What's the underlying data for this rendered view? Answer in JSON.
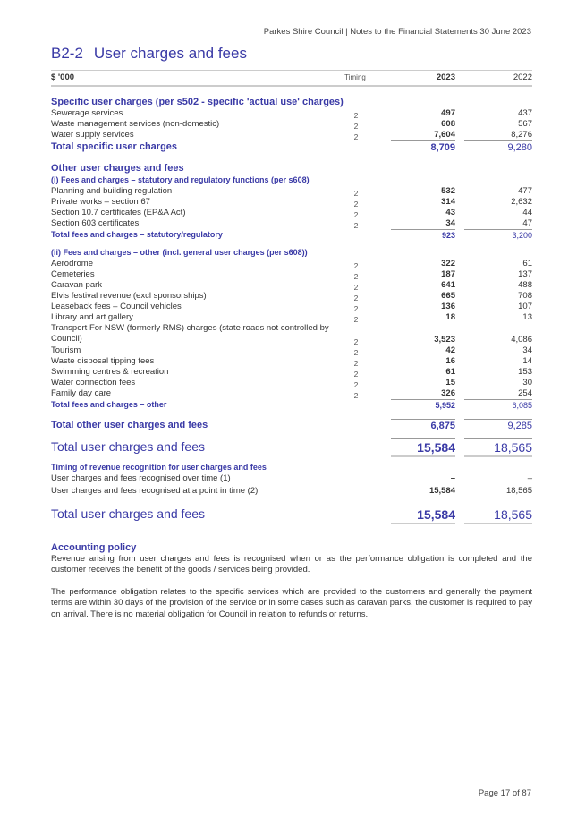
{
  "header": "Parkes Shire Council | Notes to the Financial Statements 30 June 2023",
  "title": {
    "number": "B2-2",
    "text": "User charges and fees"
  },
  "columns": {
    "label": "$ '000",
    "timing": "Timing",
    "y1": "2023",
    "y2": "2022"
  },
  "rows": [
    {
      "t": "section",
      "label": "Specific user charges (per s502 - specific 'actual use' charges)"
    },
    {
      "t": "item",
      "label": "Sewerage services",
      "timing": "2",
      "v1": "497",
      "v2": "437"
    },
    {
      "t": "item",
      "label": "Waste management services (non-domestic)",
      "timing": "2",
      "v1": "608",
      "v2": "567"
    },
    {
      "t": "item",
      "label": "Water supply services",
      "timing": "2",
      "v1": "7,604",
      "v2": "8,276"
    },
    {
      "t": "total",
      "label": "Total specific user charges",
      "v1": "8,709",
      "v2": "9,280"
    },
    {
      "t": "section",
      "label": "Other user charges and fees"
    },
    {
      "t": "sub",
      "label": "(i) Fees and charges – statutory and regulatory functions (per s608)"
    },
    {
      "t": "item",
      "label": "Planning and building regulation",
      "timing": "2",
      "v1": "532",
      "v2": "477"
    },
    {
      "t": "item",
      "label": "Private works – section 67",
      "timing": "2",
      "v1": "314",
      "v2": "2,632"
    },
    {
      "t": "item",
      "label": "Section 10.7 certificates (EP&A Act)",
      "timing": "2",
      "v1": "43",
      "v2": "44"
    },
    {
      "t": "item",
      "label": "Section 603 certificates",
      "timing": "2",
      "v1": "34",
      "v2": "47"
    },
    {
      "t": "stotal",
      "label": "Total fees and charges – statutory/regulatory",
      "v1": "923",
      "v2": "3,200"
    },
    {
      "t": "sub subgap",
      "label": "(ii) Fees and charges – other (incl. general user charges (per s608))"
    },
    {
      "t": "item",
      "label": "Aerodrome",
      "timing": "2",
      "v1": "322",
      "v2": "61"
    },
    {
      "t": "item",
      "label": "Cemeteries",
      "timing": "2",
      "v1": "187",
      "v2": "137"
    },
    {
      "t": "item",
      "label": "Caravan park",
      "timing": "2",
      "v1": "641",
      "v2": "488"
    },
    {
      "t": "item",
      "label": "Elvis festival revenue (excl sponsorships)",
      "timing": "2",
      "v1": "665",
      "v2": "708"
    },
    {
      "t": "item",
      "label": "Leaseback fees – Council vehicles",
      "timing": "2",
      "v1": "136",
      "v2": "107"
    },
    {
      "t": "item",
      "label": "Library and art gallery",
      "timing": "2",
      "v1": "18",
      "v2": "13"
    },
    {
      "t": "item two",
      "label": "Transport For NSW (formerly RMS) charges (state roads not controlled by Council)",
      "timing": "2",
      "v1": "3,523",
      "v2": "4,086"
    },
    {
      "t": "item",
      "label": "Tourism",
      "timing": "2",
      "v1": "42",
      "v2": "34"
    },
    {
      "t": "item",
      "label": "Waste disposal tipping fees",
      "timing": "2",
      "v1": "16",
      "v2": "14"
    },
    {
      "t": "item",
      "label": "Swimming centres & recreation",
      "timing": "2",
      "v1": "61",
      "v2": "153"
    },
    {
      "t": "item",
      "label": "Water connection fees",
      "timing": "2",
      "v1": "15",
      "v2": "30"
    },
    {
      "t": "item",
      "label": "Family day care",
      "timing": "2",
      "v1": "326",
      "v2": "254"
    },
    {
      "t": "stotal",
      "label": "Total fees and charges – other",
      "v1": "5,952",
      "v2": "6,085"
    },
    {
      "t": "total totalgap",
      "label": "Total other user charges and fees",
      "v1": "6,875",
      "v2": "9,285"
    },
    {
      "t": "big bigb",
      "label": "Total user charges and fees",
      "v1": "15,584",
      "v2": "18,565"
    },
    {
      "t": "sub subgap",
      "label": "Timing of revenue recognition for user charges and fees"
    },
    {
      "t": "item small",
      "label": "User charges and fees recognised over time (1)",
      "v1": "–",
      "v2": "–"
    },
    {
      "t": "item small",
      "label": "User charges and fees recognised at a point in time (2)",
      "v1": "15,584",
      "v2": "18,565"
    },
    {
      "t": "big",
      "label": "Total user charges and fees",
      "v1": "15,584",
      "v2": "18,565"
    }
  ],
  "policy": {
    "heading": "Accounting policy",
    "p1": "Revenue arising from user charges and fees is recognised when or as the performance obligation is completed and the customer receives the benefit of the goods / services being provided.",
    "p2": "The performance obligation relates to the specific services which are provided to the customers and generally the payment terms are within 30 days of the provision of the service or in some cases such as caravan parks, the customer is required to pay on arrival. There is no material obligation for Council in relation to refunds or returns."
  },
  "footer": "Page 17 of 87"
}
